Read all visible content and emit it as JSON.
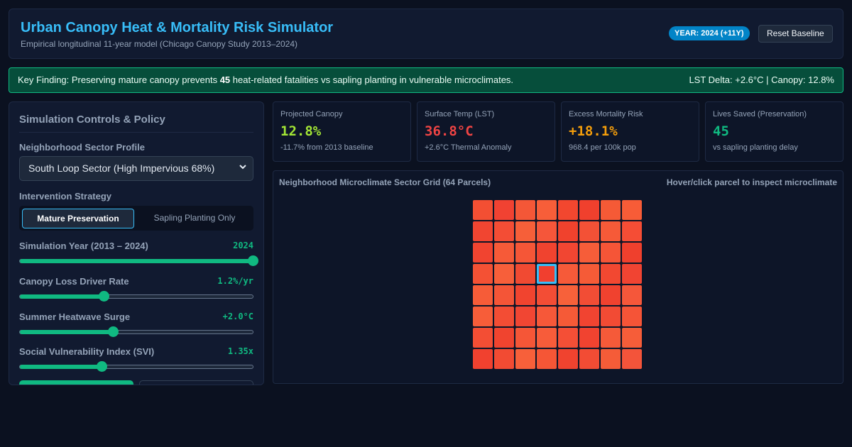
{
  "header": {
    "title": "Urban Canopy Heat & Mortality Risk Simulator",
    "subtitle": "Empirical longitudinal 11-year model (Chicago Canopy Study 2013–2024)",
    "year_badge": "YEAR: 2024 (+11Y)",
    "reset_label": "Reset Baseline"
  },
  "finding": {
    "prefix": "Key Finding: Preserving mature canopy prevents ",
    "count": "45",
    "suffix": " heat-related fatalities vs sapling planting in vulnerable microclimates.",
    "right": "LST Delta: +2.6°C | Canopy: 12.8%"
  },
  "controls": {
    "title": "Simulation Controls & Policy",
    "sector_label": "Neighborhood Sector Profile",
    "sector_value": "South Loop Sector (High Impervious 68%)",
    "strategy_label": "Intervention Strategy",
    "strategy_options": [
      "Mature Preservation",
      "Sapling Planting Only"
    ],
    "strategy_selected": "Mature Preservation",
    "sliders": [
      {
        "label": "Simulation Year (2013 – 2024)",
        "value": "2024",
        "level": 1.0
      },
      {
        "label": "Canopy Loss Driver Rate",
        "value": "1.2%/yr",
        "level": 0.36
      },
      {
        "label": "Summer Heatwave Surge",
        "value": "+2.0°C",
        "level": 0.4
      },
      {
        "label": "Social Vulnerability Index (SVI)",
        "value": "1.35x",
        "level": 0.35
      }
    ]
  },
  "stats": [
    {
      "label": "Projected Canopy",
      "value": "12.8%",
      "note": "-11.7% from 2013 baseline",
      "color": "#a3e635"
    },
    {
      "label": "Surface Temp (LST)",
      "value": "36.8°C",
      "note": "+2.6°C Thermal Anomaly",
      "color": "#ef4444"
    },
    {
      "label": "Excess Mortality Risk",
      "value": "+18.1%",
      "note": "968.4 per 100k pop",
      "color": "#f59e0b"
    },
    {
      "label": "Lives Saved (Preservation)",
      "value": "45",
      "note": "vs sapling planting delay",
      "color": "#10b981"
    }
  ],
  "grid": {
    "title": "Neighborhood Microclimate Sector Grid (64 Parcels)",
    "hint": "Hover/click parcel to inspect microclimate",
    "selected_row": 3,
    "selected_col": 3,
    "cells": [
      [
        "#f34f33",
        "#f14232",
        "#f45737",
        "#f75e39",
        "#f2472f",
        "#f0402d",
        "#f55a36",
        "#f75c37"
      ],
      [
        "#f14531",
        "#f34d35",
        "#f65f39",
        "#f5563a",
        "#f0422d",
        "#f35136",
        "#f65a38",
        "#f54d35"
      ],
      [
        "#f14430",
        "#f65a38",
        "#f55637",
        "#f0432f",
        "#f14632",
        "#f65d39",
        "#f55537",
        "#ef402d"
      ],
      [
        "#f45134",
        "#f75f3a",
        "#f14a32",
        "#f13f2f",
        "#f65a39",
        "#f55b37",
        "#f24831",
        "#f14432"
      ],
      [
        "#f65c38",
        "#f45537",
        "#f1442f",
        "#f34d35",
        "#f7613a",
        "#f24d35",
        "#f0422f",
        "#f5573a"
      ],
      [
        "#f75d39",
        "#f34d34",
        "#f14633",
        "#f65839",
        "#f55a37",
        "#f14431",
        "#f24b34",
        "#f55437"
      ],
      [
        "#f34e34",
        "#f0442f",
        "#f55637",
        "#f75c3a",
        "#f44f36",
        "#f14330",
        "#f55a39",
        "#f65d39"
      ],
      [
        "#f1412f",
        "#f24b33",
        "#f7603a",
        "#f55636",
        "#f0432f",
        "#f24c34",
        "#f55c38",
        "#f3543a"
      ]
    ]
  },
  "colors": {
    "accent": "#38bdf8",
    "positive": "#10b981",
    "finding_bg": "#064e3b"
  }
}
